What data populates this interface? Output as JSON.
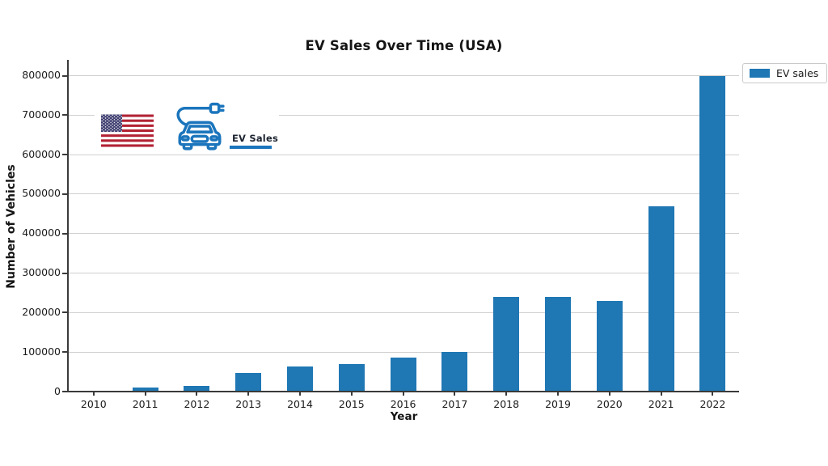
{
  "chart_data": {
    "type": "bar",
    "title": "EV Sales Over Time (USA)",
    "xlabel": "Year",
    "ylabel": "Number of Vehicles",
    "categories": [
      "2010",
      "2011",
      "2012",
      "2013",
      "2014",
      "2015",
      "2016",
      "2017",
      "2018",
      "2019",
      "2020",
      "2021",
      "2022"
    ],
    "series": [
      {
        "name": "EV sales",
        "values": [
          2000,
          10000,
          15000,
          47000,
          63000,
          70000,
          87000,
          100000,
          240000,
          240000,
          230000,
          470000,
          800000
        ]
      }
    ],
    "yticks": [
      0,
      100000,
      200000,
      300000,
      400000,
      500000,
      600000,
      700000,
      800000
    ],
    "ylim": [
      0,
      840000
    ],
    "grid": "horizontal",
    "legend_position": "upper right"
  },
  "legend": {
    "label": "EV sales"
  },
  "logo": {
    "label": "EV Sales",
    "flag": "united-states-flag",
    "icon": "electric-car-charging"
  },
  "colors": {
    "bar": "#1f77b4",
    "grid": "#d0d0d0",
    "axis": "#3a3a3a",
    "text": "#1a1a1a",
    "icon_blue": "#1b75bc",
    "flag_red": "#b22234",
    "flag_blue": "#3c3b6e"
  }
}
